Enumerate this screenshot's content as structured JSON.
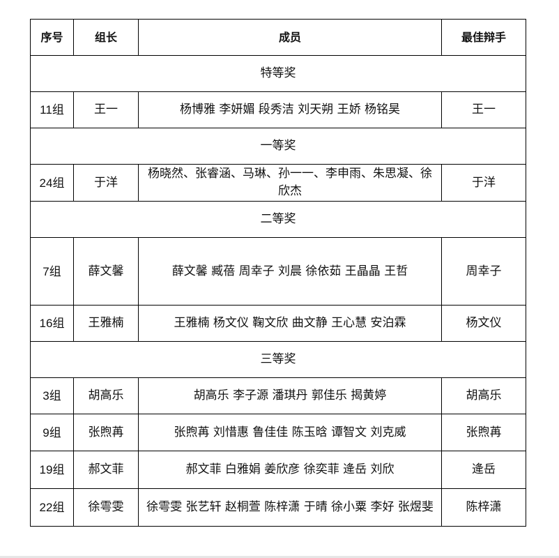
{
  "header": [
    "序号",
    "组长",
    "成员",
    "最佳辩手"
  ],
  "sections": [
    {
      "award": "特等奖",
      "rows": [
        {
          "group": "11组",
          "leader": "王一",
          "members": "杨博雅 李妍媚 段秀洁 刘天朔 王娇 杨铭昊",
          "best": "王一"
        }
      ]
    },
    {
      "award": "一等奖",
      "rows": [
        {
          "group": "24组",
          "leader": "于洋",
          "members": "杨晓然、张睿涵、马琳、孙一一、李申雨、朱思凝、徐欣杰",
          "best": "于洋"
        }
      ]
    },
    {
      "award": "二等奖",
      "rows": [
        {
          "group": "7组",
          "leader": "薛文馨",
          "members": "薛文馨 臧蓓 周幸子 刘晨 徐依茹 王晶晶 王哲",
          "best": "周幸子"
        },
        {
          "group": "16组",
          "leader": "王雅楠",
          "members": "王雅楠 杨文仪 鞠文欣 曲文静 王心慧 安泊霖",
          "best": "杨文仪"
        }
      ]
    },
    {
      "award": "三等奖",
      "rows": [
        {
          "group": "3组",
          "leader": "胡高乐",
          "members": "胡高乐 李子源 潘琪丹 郭佳乐 揭黄婷",
          "best": "胡高乐"
        },
        {
          "group": "9组",
          "leader": "张煦苒",
          "members": "张煦苒 刘惜惠 鲁佳佳 陈玉晗 谭智文 刘克威",
          "best": "张煦苒"
        },
        {
          "group": "19组",
          "leader": "郝文菲",
          "members": "郝文菲 白雅娟 姜欣彦 徐奕菲 逄岳 刘欣",
          "best": "逄岳"
        },
        {
          "group": "22组",
          "leader": "徐雩雯",
          "members": "徐雩雯 张艺轩 赵桐萱 陈梓潇 于晴 徐小粟 李好 张煜斐",
          "best": "陈梓潇"
        }
      ]
    }
  ]
}
